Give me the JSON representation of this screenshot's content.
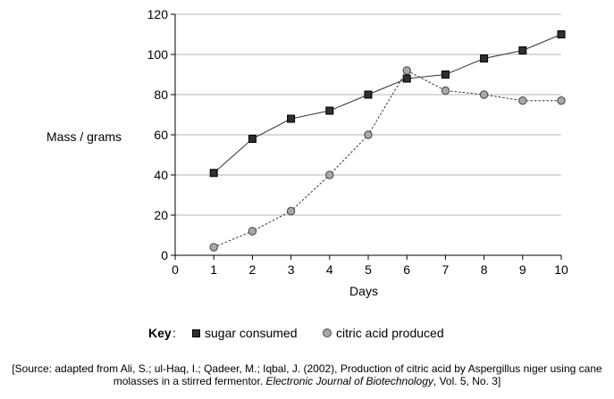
{
  "chart_data": {
    "type": "line",
    "xlabel": "Days",
    "ylabel": "Mass / grams",
    "xlim": [
      0,
      10
    ],
    "ylim": [
      0,
      120
    ],
    "x_ticks": [
      0,
      1,
      2,
      3,
      4,
      5,
      6,
      7,
      8,
      9,
      10
    ],
    "y_ticks": [
      0,
      20,
      40,
      60,
      80,
      100,
      120
    ],
    "grid": "horizontal",
    "series": [
      {
        "name": "sugar consumed",
        "marker": "square",
        "line_style": "solid",
        "color": "#2f2f2f",
        "x": [
          1,
          2,
          3,
          4,
          5,
          6,
          7,
          8,
          9,
          10
        ],
        "values": [
          41,
          58,
          68,
          72,
          80,
          88,
          90,
          98,
          102,
          110
        ]
      },
      {
        "name": "citric acid produced",
        "marker": "circle",
        "line_style": "dotted",
        "color": "#a8a8a8",
        "x": [
          1,
          2,
          3,
          4,
          5,
          6,
          7,
          8,
          9,
          10
        ],
        "values": [
          4,
          12,
          22,
          40,
          60,
          92,
          82,
          80,
          77,
          77
        ]
      }
    ]
  },
  "key": {
    "title": "Key",
    "colon": ":",
    "sugar_label": "sugar consumed",
    "citric_label": "citric acid produced"
  },
  "source": {
    "line1": "[Source: adapted from Ali, S.; ul-Haq, I.; Qadeer, M.; Iqbal, J. (2002), Production of citric acid by Aspergillus niger using cane",
    "line2_pre": "molasses in a stirred fermentor. ",
    "line2_journal": "Electronic Journal of Biotechnology",
    "line2_post": ", Vol. 5, No. 3]"
  }
}
